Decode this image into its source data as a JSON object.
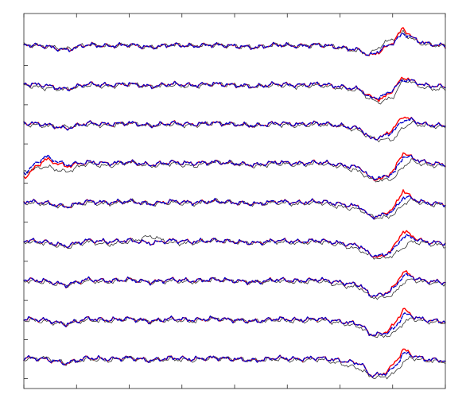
{
  "chart_data": {
    "type": "line",
    "title": "",
    "xlabel": "",
    "ylabel": "",
    "grid": false,
    "legend": "none",
    "channel_count": 9,
    "x_range": [
      0,
      1
    ],
    "y_range": [
      -1.6,
      1.6
    ],
    "x_ticks": [
      0.0,
      0.125,
      0.25,
      0.375,
      0.5,
      0.625,
      0.75,
      0.875,
      1.0
    ],
    "series": [
      {
        "role": "reference",
        "color": "#333333",
        "style": "solid"
      },
      {
        "role": "estimate-a",
        "color": "#ff0000",
        "style": "solid"
      },
      {
        "role": "estimate-b",
        "color": "#0000cc",
        "style": "dashed"
      }
    ],
    "x_samples": [
      0.0,
      0.05,
      0.1,
      0.15,
      0.2,
      0.25,
      0.3,
      0.35,
      0.4,
      0.45,
      0.5,
      0.55,
      0.6,
      0.65,
      0.7,
      0.75,
      0.8,
      0.82,
      0.85,
      0.88,
      0.9,
      0.92,
      0.95,
      1.0
    ],
    "channels": [
      {
        "reference": [
          0.1,
          0.0,
          -0.2,
          0.1,
          0.0,
          0.1,
          -0.1,
          0.1,
          0.0,
          0.1,
          0.0,
          -0.1,
          0.1,
          0.0,
          0.1,
          -0.1,
          -0.4,
          -0.6,
          0.1,
          0.6,
          1.0,
          0.5,
          0.1,
          0.0
        ],
        "estimate_a": [
          0.1,
          0.0,
          -0.3,
          0.1,
          0.0,
          0.1,
          -0.1,
          0.1,
          0.0,
          0.1,
          0.0,
          -0.1,
          0.1,
          0.0,
          0.1,
          -0.1,
          -0.3,
          -0.7,
          -0.3,
          0.4,
          1.3,
          0.6,
          0.2,
          0.0
        ],
        "estimate_b": [
          0.1,
          0.0,
          -0.3,
          0.1,
          0.0,
          0.1,
          -0.1,
          0.1,
          0.0,
          0.1,
          0.0,
          -0.1,
          0.1,
          0.0,
          0.1,
          -0.1,
          -0.3,
          -0.7,
          -0.2,
          0.3,
          0.9,
          0.6,
          0.2,
          0.0
        ]
      },
      {
        "reference": [
          0.0,
          -0.2,
          -0.3,
          0.0,
          -0.1,
          0.1,
          -0.1,
          0.0,
          -0.1,
          0.1,
          0.0,
          -0.1,
          0.0,
          -0.1,
          0.0,
          -0.2,
          -0.4,
          -1.0,
          -1.2,
          -0.7,
          0.4,
          0.2,
          -0.2,
          -0.3
        ],
        "estimate_a": [
          0.1,
          0.0,
          -0.3,
          0.1,
          0.0,
          0.1,
          -0.1,
          0.1,
          0.0,
          0.1,
          0.0,
          -0.1,
          0.1,
          0.0,
          0.1,
          -0.1,
          -0.3,
          -0.8,
          -1.0,
          -0.2,
          0.6,
          0.3,
          0.0,
          -0.1
        ],
        "estimate_b": [
          0.1,
          0.0,
          -0.3,
          0.1,
          0.0,
          0.1,
          -0.1,
          0.1,
          0.0,
          0.1,
          0.0,
          -0.1,
          0.1,
          0.0,
          0.1,
          -0.1,
          -0.3,
          -0.9,
          -0.8,
          -0.2,
          0.4,
          0.3,
          0.0,
          -0.1
        ]
      },
      {
        "reference": [
          0.0,
          -0.1,
          -0.2,
          0.0,
          -0.1,
          0.1,
          -0.1,
          0.0,
          -0.1,
          0.1,
          0.0,
          -0.1,
          0.0,
          -0.1,
          0.0,
          -0.1,
          -0.5,
          -0.9,
          -1.1,
          -1.0,
          -0.2,
          0.1,
          -0.1,
          -0.2
        ],
        "estimate_a": [
          0.1,
          0.0,
          -0.3,
          0.1,
          0.0,
          0.1,
          -0.1,
          0.1,
          0.0,
          0.1,
          0.0,
          -0.1,
          0.1,
          0.0,
          0.1,
          -0.1,
          -0.3,
          -1.0,
          -0.9,
          -0.2,
          0.6,
          0.3,
          0.0,
          -0.1
        ],
        "estimate_b": [
          0.1,
          0.0,
          -0.3,
          0.1,
          0.0,
          0.1,
          -0.1,
          0.1,
          0.0,
          0.1,
          0.0,
          -0.1,
          0.1,
          0.0,
          0.1,
          -0.1,
          -0.3,
          -1.0,
          -0.9,
          -0.4,
          0.3,
          0.3,
          0.0,
          -0.1
        ]
      },
      {
        "reference": [
          -0.6,
          -0.2,
          -0.6,
          0.0,
          -0.2,
          0.1,
          -0.2,
          0.0,
          -0.2,
          0.1,
          0.0,
          -0.2,
          0.0,
          -0.1,
          0.0,
          -0.2,
          -0.6,
          -1.1,
          -1.2,
          -1.0,
          -0.2,
          0.2,
          -0.1,
          -0.2
        ],
        "estimate_a": [
          -1.0,
          0.3,
          -0.2,
          0.1,
          0.0,
          0.1,
          -0.1,
          0.1,
          0.0,
          0.1,
          0.0,
          -0.1,
          0.1,
          0.0,
          0.1,
          -0.1,
          -0.3,
          -1.0,
          -1.1,
          -0.4,
          0.8,
          0.4,
          0.1,
          -0.1
        ],
        "estimate_b": [
          -0.7,
          0.5,
          -0.1,
          0.1,
          0.0,
          0.1,
          -0.1,
          0.1,
          0.0,
          0.1,
          0.0,
          -0.1,
          0.1,
          0.0,
          0.1,
          -0.1,
          -0.3,
          -1.0,
          -1.0,
          -0.6,
          0.5,
          0.4,
          0.1,
          -0.1
        ]
      },
      {
        "reference": [
          0.0,
          -0.1,
          -0.3,
          0.0,
          -0.1,
          0.1,
          -0.1,
          0.0,
          -0.1,
          0.1,
          0.0,
          -0.1,
          0.0,
          -0.1,
          0.0,
          -0.3,
          -0.5,
          -0.9,
          -1.1,
          -0.8,
          -0.1,
          0.2,
          -0.1,
          -0.2
        ],
        "estimate_a": [
          0.1,
          0.0,
          -0.3,
          0.1,
          0.0,
          0.1,
          -0.1,
          0.1,
          0.0,
          0.1,
          0.0,
          -0.1,
          0.1,
          0.0,
          0.1,
          -0.1,
          -0.3,
          -1.0,
          -0.9,
          -0.3,
          0.9,
          0.3,
          0.0,
          -0.1
        ],
        "estimate_b": [
          0.1,
          0.0,
          -0.3,
          0.1,
          0.0,
          0.1,
          -0.1,
          0.1,
          0.0,
          0.1,
          0.0,
          -0.1,
          0.1,
          0.0,
          0.1,
          -0.1,
          -0.3,
          -1.0,
          -0.9,
          -0.5,
          0.4,
          0.3,
          0.0,
          -0.1
        ]
      },
      {
        "reference": [
          0.0,
          -0.1,
          -0.4,
          0.0,
          -0.2,
          0.0,
          0.4,
          -0.1,
          -0.1,
          0.1,
          0.0,
          -0.1,
          0.0,
          -0.1,
          0.0,
          -0.2,
          -0.6,
          -1.0,
          -1.2,
          -0.9,
          -0.4,
          0.0,
          -0.1,
          -0.3
        ],
        "estimate_a": [
          0.1,
          0.0,
          -0.3,
          0.1,
          0.0,
          0.1,
          -0.1,
          0.1,
          0.0,
          0.1,
          0.0,
          -0.1,
          0.1,
          0.0,
          0.1,
          -0.1,
          -0.3,
          -0.9,
          -1.1,
          -0.3,
          0.8,
          0.4,
          0.0,
          -0.1
        ],
        "estimate_b": [
          0.1,
          0.0,
          -0.3,
          0.1,
          0.0,
          0.1,
          -0.1,
          0.1,
          0.0,
          0.1,
          0.0,
          -0.1,
          0.1,
          0.0,
          0.1,
          -0.1,
          -0.3,
          -0.9,
          -1.0,
          -0.5,
          0.4,
          0.3,
          0.0,
          -0.1
        ]
      },
      {
        "reference": [
          0.0,
          -0.1,
          -0.3,
          0.0,
          -0.1,
          0.1,
          -0.1,
          0.0,
          -0.1,
          0.1,
          0.0,
          -0.1,
          0.0,
          -0.1,
          0.0,
          -0.3,
          -0.5,
          -1.1,
          -1.2,
          -0.9,
          -0.1,
          0.1,
          -0.1,
          -0.2
        ],
        "estimate_a": [
          0.1,
          0.0,
          -0.3,
          0.1,
          0.0,
          0.1,
          -0.1,
          0.1,
          0.0,
          0.1,
          0.0,
          -0.1,
          0.1,
          0.0,
          0.1,
          -0.1,
          -0.3,
          -1.0,
          -1.0,
          -0.4,
          0.7,
          0.3,
          0.0,
          -0.1
        ],
        "estimate_b": [
          0.1,
          0.0,
          -0.3,
          0.1,
          0.0,
          0.1,
          -0.1,
          0.1,
          0.0,
          0.1,
          0.0,
          -0.1,
          0.1,
          0.0,
          0.1,
          -0.1,
          -0.3,
          -1.0,
          -1.0,
          -0.5,
          0.4,
          0.3,
          0.0,
          -0.1
        ]
      },
      {
        "reference": [
          0.0,
          -0.1,
          -0.3,
          0.0,
          -0.1,
          0.1,
          -0.1,
          0.0,
          -0.1,
          0.1,
          0.0,
          -0.1,
          0.0,
          -0.1,
          0.0,
          -0.2,
          -0.5,
          -1.0,
          -1.2,
          -0.9,
          -0.2,
          0.1,
          -0.1,
          -0.2
        ],
        "estimate_a": [
          0.1,
          0.0,
          -0.3,
          0.1,
          0.0,
          0.1,
          -0.1,
          0.1,
          0.0,
          0.1,
          0.0,
          -0.1,
          0.1,
          0.0,
          0.1,
          -0.1,
          -0.3,
          -1.0,
          -1.0,
          -0.3,
          0.8,
          0.3,
          0.0,
          -0.1
        ],
        "estimate_b": [
          0.1,
          0.0,
          -0.3,
          0.1,
          0.0,
          0.1,
          -0.1,
          0.1,
          0.0,
          0.1,
          0.0,
          -0.1,
          0.1,
          0.0,
          0.1,
          -0.1,
          -0.3,
          -1.0,
          -1.0,
          -0.6,
          0.4,
          0.3,
          0.0,
          -0.1
        ]
      },
      {
        "reference": [
          0.0,
          0.1,
          -0.3,
          0.0,
          -0.1,
          0.1,
          -0.1,
          0.0,
          -0.1,
          0.1,
          0.0,
          -0.1,
          0.0,
          -0.1,
          0.0,
          -0.3,
          -0.7,
          -1.2,
          -1.3,
          -1.0,
          -0.2,
          0.1,
          -0.1,
          -0.2
        ],
        "estimate_a": [
          0.1,
          0.0,
          -0.3,
          0.1,
          0.0,
          0.1,
          -0.1,
          0.1,
          0.0,
          0.1,
          0.0,
          -0.1,
          0.1,
          0.0,
          0.1,
          -0.1,
          -0.3,
          -1.1,
          -1.1,
          -0.3,
          0.7,
          0.3,
          0.0,
          -0.1
        ],
        "estimate_b": [
          0.1,
          0.0,
          -0.3,
          0.1,
          0.0,
          0.1,
          -0.1,
          0.1,
          0.0,
          0.1,
          0.0,
          -0.1,
          0.1,
          0.0,
          0.1,
          -0.1,
          -0.3,
          -1.1,
          -1.1,
          -0.6,
          0.4,
          0.3,
          0.0,
          -0.1
        ]
      }
    ]
  }
}
